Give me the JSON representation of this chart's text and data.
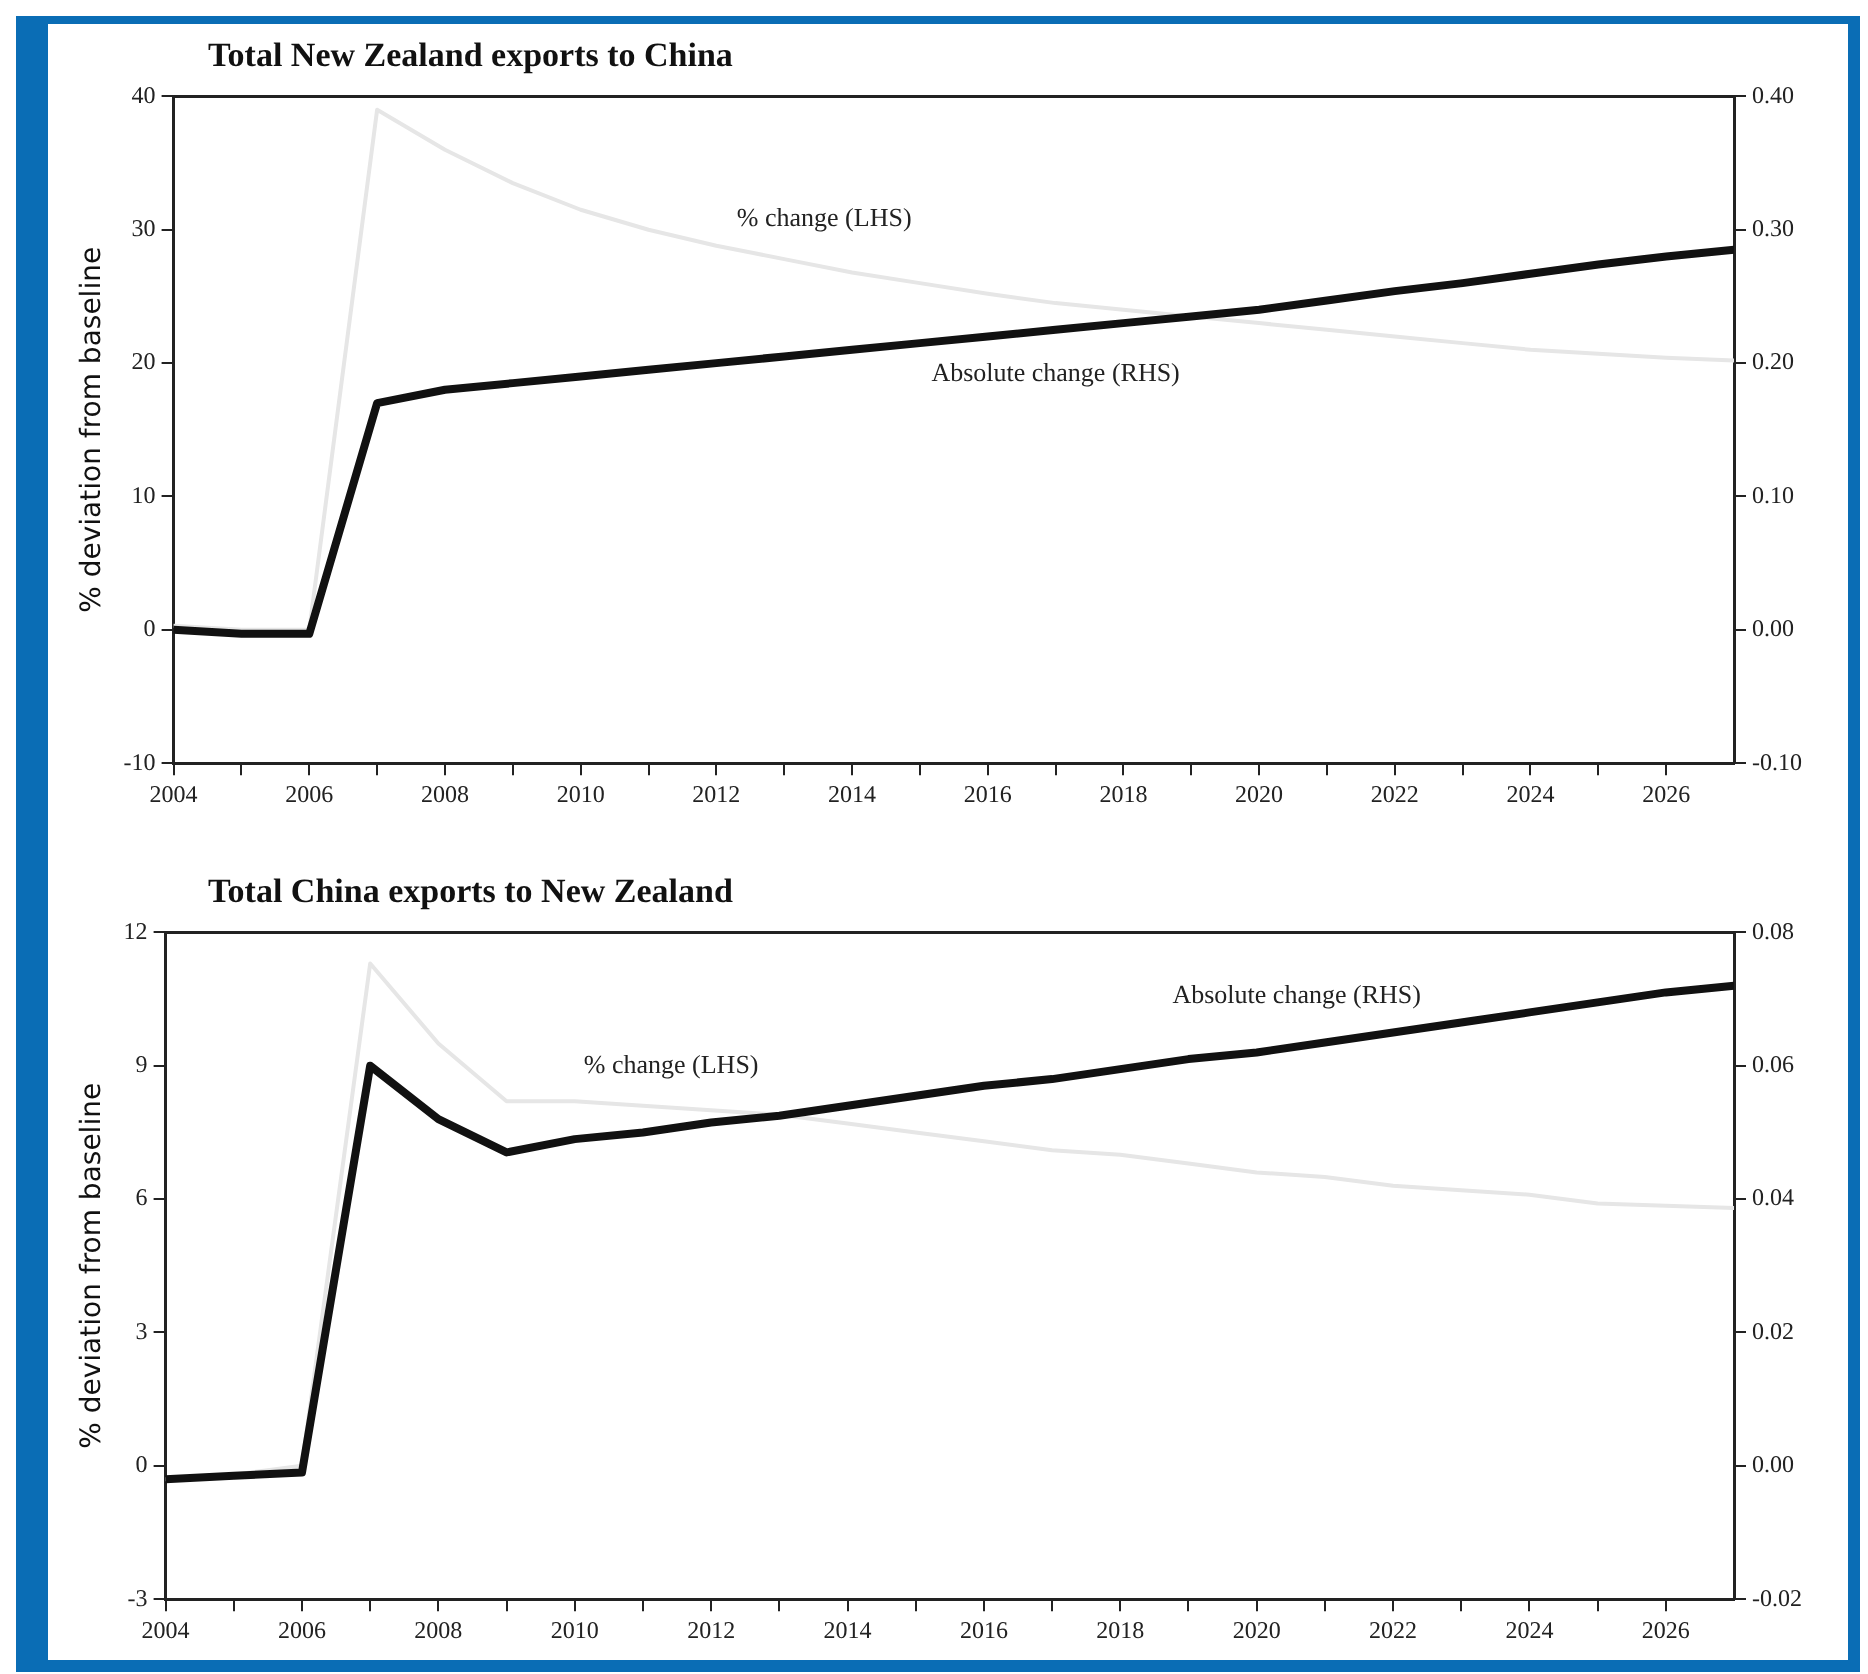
{
  "chart_data": [
    {
      "type": "line",
      "title": "Total New Zealand exports to China",
      "ylabel": "% deviation from baseline",
      "x": [
        2004,
        2005,
        2006,
        2007,
        2008,
        2009,
        2010,
        2011,
        2012,
        2013,
        2014,
        2015,
        2016,
        2017,
        2018,
        2019,
        2020,
        2021,
        2022,
        2023,
        2024,
        2025,
        2026,
        2027
      ],
      "xlim": [
        2004,
        2027
      ],
      "xticks": [
        2004,
        {
          "value": 2005,
          "label": null
        },
        2006,
        {
          "value": 2007,
          "label": null
        },
        2008,
        {
          "value": 2009,
          "label": null
        },
        2010,
        {
          "value": 2011,
          "label": null
        },
        2012,
        {
          "value": 2013,
          "label": null
        },
        2014,
        {
          "value": 2015,
          "label": null
        },
        2016,
        {
          "value": 2017,
          "label": null
        },
        2018,
        {
          "value": 2019,
          "label": null
        },
        2020,
        {
          "value": 2021,
          "label": null
        },
        2022,
        {
          "value": 2023,
          "label": null
        },
        2024,
        {
          "value": 2025,
          "label": null
        },
        2026
      ],
      "ylim": [
        -10,
        40
      ],
      "yticks": [
        -10,
        0,
        10,
        20,
        30,
        40
      ],
      "y2lim": [
        -0.1,
        0.4
      ],
      "y2ticks": [
        {
          "value": -0.1,
          "label": "-0.10"
        },
        {
          "value": 0,
          "label": "0.00"
        },
        {
          "value": 0.1,
          "label": "0.10"
        },
        {
          "value": 0.2,
          "label": "0.20"
        },
        {
          "value": 0.3,
          "label": "0.30"
        },
        {
          "value": 0.4,
          "label": "0.40"
        }
      ],
      "grid": false,
      "legend": false,
      "marker": "none",
      "series": [
        {
          "name": "% change (LHS)",
          "color": "#e6e6e6",
          "values": [
            0.3,
            0,
            0,
            39,
            36,
            33.5,
            31.5,
            30,
            28.8,
            27.8,
            26.8,
            26,
            25.2,
            24.5,
            24,
            23.5,
            23,
            22.5,
            22,
            21.5,
            21,
            20.7,
            20.4,
            20.2
          ]
        },
        {
          "name": "Absolute change (RHS)",
          "color": "#111111",
          "axis": "y2",
          "values": [
            0,
            -0.003,
            -0.003,
            0.17,
            0.18,
            0.185,
            0.19,
            0.195,
            0.2,
            0.205,
            0.21,
            0.215,
            0.22,
            0.225,
            0.23,
            0.235,
            0.24,
            0.247,
            0.254,
            0.26,
            0.267,
            0.274,
            0.28,
            0.285
          ]
        }
      ]
    },
    {
      "type": "line",
      "title": "Total China exports to New Zealand",
      "ylabel": "% deviation from baseline",
      "x": [
        2004,
        2005,
        2006,
        2007,
        2008,
        2009,
        2010,
        2011,
        2012,
        2013,
        2014,
        2015,
        2016,
        2017,
        2018,
        2019,
        2020,
        2021,
        2022,
        2023,
        2024,
        2025,
        2026,
        2027
      ],
      "xlim": [
        2004,
        2027
      ],
      "xticks": [
        2004,
        {
          "value": 2005,
          "label": null
        },
        2006,
        {
          "value": 2007,
          "label": null
        },
        2008,
        {
          "value": 2009,
          "label": null
        },
        2010,
        {
          "value": 2011,
          "label": null
        },
        2012,
        {
          "value": 2013,
          "label": null
        },
        2014,
        {
          "value": 2015,
          "label": null
        },
        2016,
        {
          "value": 2017,
          "label": null
        },
        2018,
        {
          "value": 2019,
          "label": null
        },
        2020,
        {
          "value": 2021,
          "label": null
        },
        2022,
        {
          "value": 2023,
          "label": null
        },
        2024,
        {
          "value": 2025,
          "label": null
        },
        2026
      ],
      "ylim": [
        -3,
        12
      ],
      "yticks": [
        -3,
        0,
        3,
        6,
        9,
        12
      ],
      "y2lim": [
        -0.02,
        0.08
      ],
      "y2ticks": [
        {
          "value": -0.02,
          "label": "-0.02"
        },
        {
          "value": 0,
          "label": "0.00"
        },
        {
          "value": 0.02,
          "label": "0.02"
        },
        {
          "value": 0.04,
          "label": "0.04"
        },
        {
          "value": 0.06,
          "label": "0.06"
        },
        {
          "value": 0.08,
          "label": "0.08"
        }
      ],
      "grid": false,
      "legend": false,
      "marker": "none",
      "series": [
        {
          "name": "% change (LHS)",
          "color": "#e6e6e6",
          "values": [
            -0.3,
            -0.2,
            0,
            11.3,
            9.5,
            8.2,
            8.2,
            8.1,
            8,
            7.9,
            7.7,
            7.5,
            7.3,
            7.1,
            7,
            6.8,
            6.6,
            6.5,
            6.3,
            6.2,
            6.1,
            5.9,
            5.85,
            5.8
          ]
        },
        {
          "name": "Absolute change (RHS)",
          "color": "#111111",
          "axis": "y2",
          "values": [
            -0.002,
            -0.0015,
            -0.001,
            0.06,
            0.052,
            0.047,
            0.049,
            0.05,
            0.0515,
            0.0525,
            0.054,
            0.0555,
            0.057,
            0.058,
            0.0595,
            0.061,
            0.062,
            0.0635,
            0.065,
            0.0665,
            0.068,
            0.0695,
            0.071,
            0.072
          ]
        }
      ]
    }
  ]
}
